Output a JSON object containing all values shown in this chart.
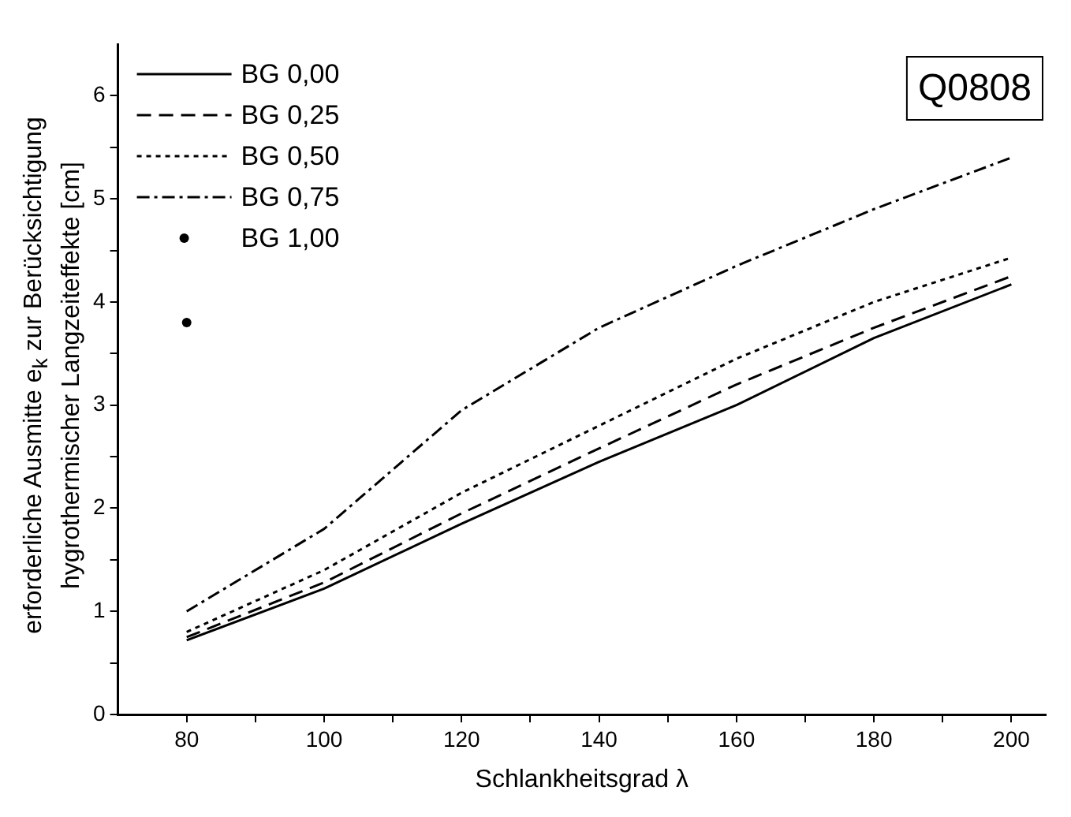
{
  "chart_data": {
    "type": "line",
    "xlabel": "Schlankheitsgrad λ",
    "ylabel": "erforderliche Ausmitte e$_{k}$ zur Berücksichtigung\nhygrothermischer Langzeiteffekte [cm]",
    "x": [
      80,
      100,
      120,
      140,
      160,
      180,
      200
    ],
    "series": [
      {
        "name": "BG 0,00",
        "color": "#000000",
        "line_style": "solid",
        "values": [
          0.72,
          1.22,
          1.85,
          2.45,
          3.0,
          3.65,
          4.17
        ]
      },
      {
        "name": "BG 0,25",
        "color": "#000000",
        "line_style": "dashed",
        "values": [
          0.75,
          1.28,
          1.95,
          2.58,
          3.2,
          3.75,
          4.25
        ]
      },
      {
        "name": "BG 0,50",
        "color": "#000000",
        "line_style": "dotted",
        "values": [
          0.8,
          1.4,
          2.15,
          2.8,
          3.45,
          4.0,
          4.43
        ]
      },
      {
        "name": "BG 0,75",
        "color": "#000000",
        "line_style": "dashdot",
        "values": [
          1.0,
          1.8,
          2.95,
          3.75,
          4.35,
          4.9,
          5.4
        ]
      },
      {
        "name": "BG 1,00",
        "color": "#000000",
        "type": "scatter",
        "marker": "circle",
        "x": [
          80
        ],
        "values": [
          3.8
        ]
      }
    ],
    "xlim": [
      70,
      205
    ],
    "xticks": [
      80,
      {
        "value": 90,
        "label": null
      },
      100,
      {
        "value": 110,
        "label": null
      },
      120,
      {
        "value": 130,
        "label": null
      },
      140,
      {
        "value": 150,
        "label": null
      },
      160,
      {
        "value": 170,
        "label": null
      },
      180,
      {
        "value": 190,
        "label": null
      },
      200
    ],
    "ylim": [
      0,
      6.5
    ],
    "yticks": [
      0,
      {
        "value": 0.5,
        "label": null
      },
      1,
      {
        "value": 1.5,
        "label": null
      },
      2,
      {
        "value": 2.5,
        "label": null
      },
      3,
      {
        "value": 3.5,
        "label": null
      },
      4,
      {
        "value": 4.5,
        "label": null
      },
      5,
      {
        "value": 5.5,
        "label": null
      },
      6
    ],
    "legend": "top left",
    "grid": false,
    "annotations": [
      "Q0808"
    ]
  }
}
